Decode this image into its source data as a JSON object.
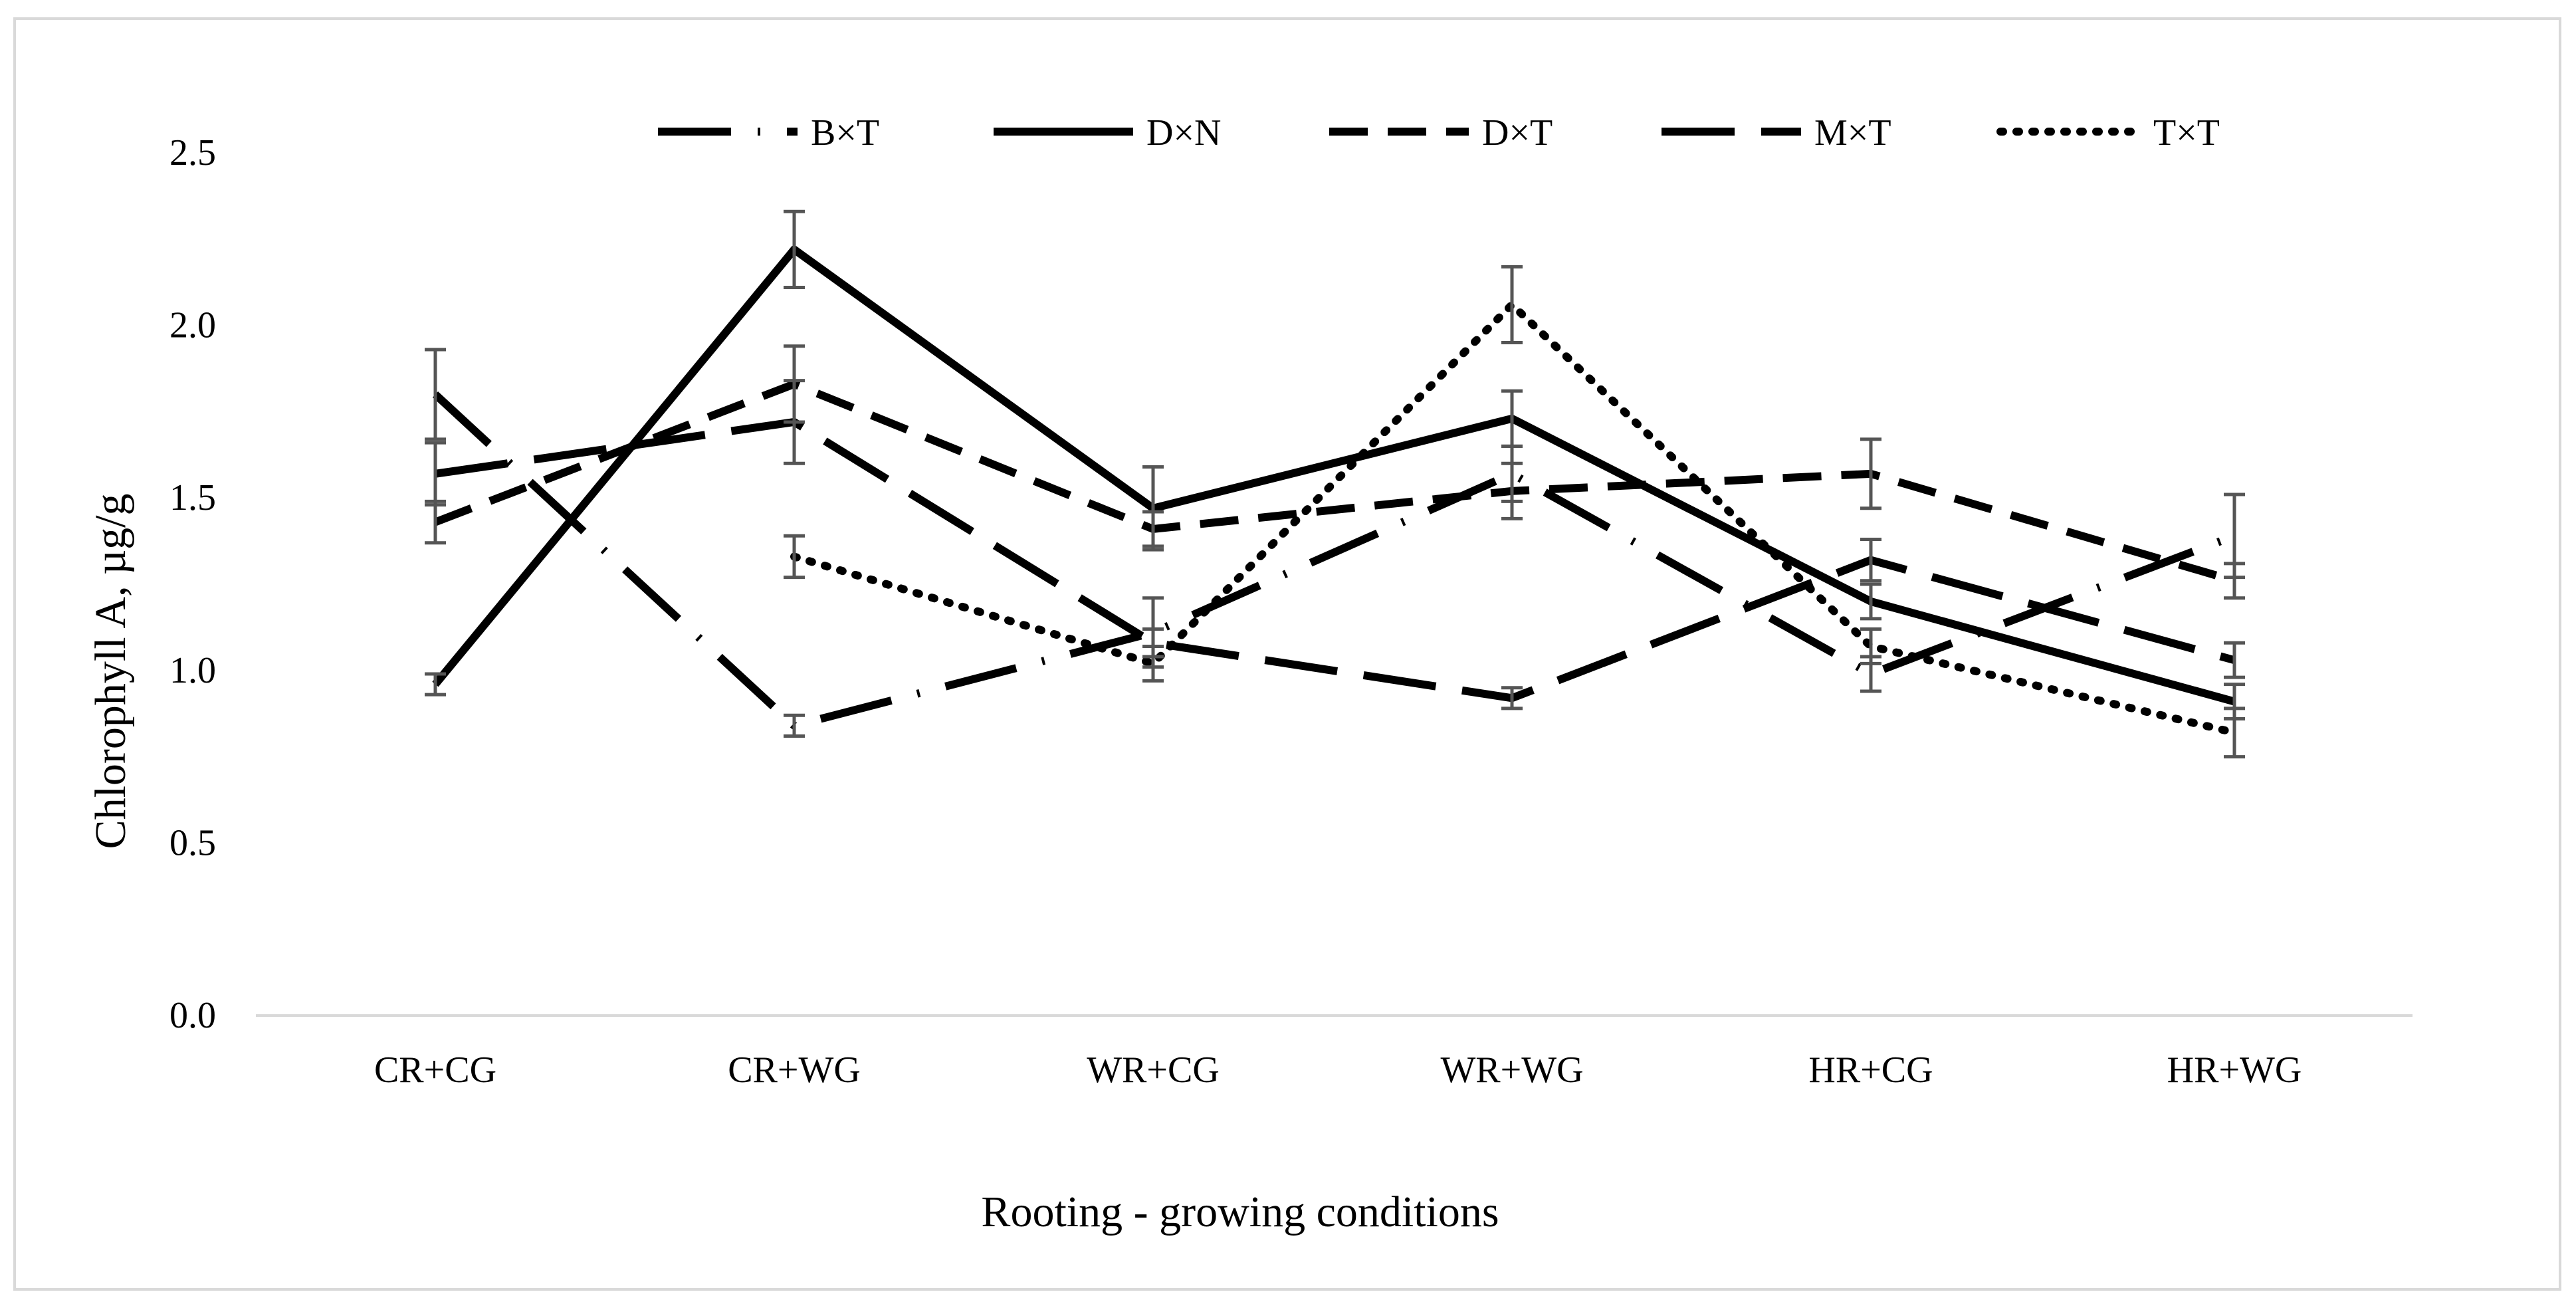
{
  "chart_data": {
    "type": "line",
    "title": "",
    "xlabel": "Rooting - growing conditions",
    "ylabel": "Chlorophyll A, µg/g",
    "ylim": [
      0,
      2.5
    ],
    "yticks": [
      "0.0",
      "0.5",
      "1.0",
      "1.5",
      "2.0",
      "2.5"
    ],
    "ytick_values": [
      0,
      0.5,
      1.0,
      1.5,
      2.0,
      2.5
    ],
    "categories": [
      "CR+CG",
      "CR+WG",
      "WR+CG",
      "WR+WG",
      "HR+CG",
      "HR+WG"
    ],
    "legend_position": "top",
    "grid": false,
    "series": [
      {
        "name": "B×T",
        "style": "long-dash-dot",
        "values": [
          1.8,
          0.84,
          1.11,
          1.57,
          0.99,
          1.39
        ],
        "errors": [
          0.13,
          0.03,
          0.1,
          0.08,
          0.05,
          0.12
        ]
      },
      {
        "name": "D×N",
        "style": "solid",
        "values": [
          0.96,
          2.22,
          1.47,
          1.73,
          1.2,
          0.91
        ],
        "errors": [
          0.03,
          0.11,
          0.12,
          0.08,
          0.05,
          0.05
        ]
      },
      {
        "name": "D×T",
        "style": "dash",
        "values": [
          1.43,
          1.83,
          1.41,
          1.52,
          1.57,
          1.26
        ],
        "errors": [
          0.06,
          0.11,
          0.05,
          0.08,
          0.1,
          0.05
        ]
      },
      {
        "name": "M×T",
        "style": "long-dash",
        "values": [
          1.57,
          1.72,
          1.08,
          0.92,
          1.32,
          1.03
        ],
        "errors": [
          0.09,
          0.12,
          0.04,
          0.03,
          0.06,
          0.05
        ]
      },
      {
        "name": "T×T",
        "style": "dot",
        "values": [
          null,
          1.33,
          1.02,
          2.06,
          1.07,
          0.82
        ],
        "errors": [
          null,
          0.06,
          0.05,
          0.11,
          0.05,
          0.07
        ]
      }
    ],
    "colors": {
      "line": "#000000",
      "error_bar": "#555555",
      "axis": "#d9d9d9",
      "border": "#d9d9d9"
    }
  }
}
